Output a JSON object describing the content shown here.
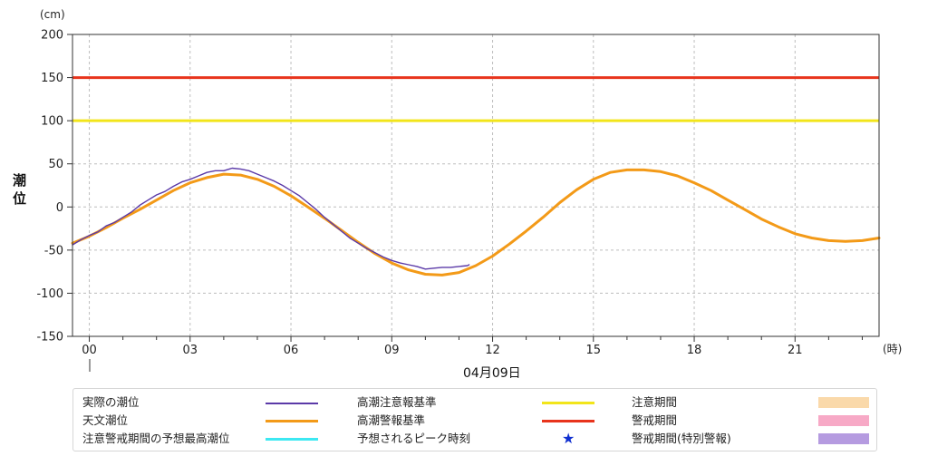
{
  "chart_data": {
    "type": "line",
    "unit_label": "(cm)",
    "ylabel": "潮位",
    "xunit_label": "(時)",
    "date_label": "04月09日",
    "xlim": [
      -0.5,
      23.5
    ],
    "ylim": [
      -150,
      200
    ],
    "yticks": [
      -150,
      -100,
      -50,
      0,
      50,
      100,
      150,
      200
    ],
    "xticks": [
      {
        "x": 0,
        "label": "00"
      },
      {
        "x": 3,
        "label": "03"
      },
      {
        "x": 6,
        "label": "06"
      },
      {
        "x": 9,
        "label": "09"
      },
      {
        "x": 12,
        "label": "12"
      },
      {
        "x": 15,
        "label": "15"
      },
      {
        "x": 18,
        "label": "18"
      },
      {
        "x": 21,
        "label": "21"
      }
    ],
    "grid": true,
    "thresholds": [
      {
        "name": "高潮警報基準",
        "value": 150,
        "color": "#e8341c"
      },
      {
        "name": "高潮注意報基準",
        "value": 100,
        "color": "#f2e51a"
      }
    ],
    "series": [
      {
        "name": "天文潮位",
        "color": "#f39a18",
        "x": [
          -0.5,
          0.0,
          0.5,
          1.0,
          1.5,
          2.0,
          2.5,
          3.0,
          3.5,
          4.0,
          4.5,
          5.0,
          5.5,
          6.0,
          6.5,
          7.0,
          7.5,
          8.0,
          8.5,
          9.0,
          9.5,
          10.0,
          10.5,
          11.0,
          11.5,
          12.0,
          12.5,
          13.0,
          13.5,
          14.0,
          14.5,
          15.0,
          15.5,
          16.0,
          16.5,
          17.0,
          17.5,
          18.0,
          18.5,
          19.0,
          19.5,
          20.0,
          20.5,
          21.0,
          21.5,
          22.0,
          22.5,
          23.0,
          23.5
        ],
        "values": [
          -42,
          -34,
          -24,
          -13,
          -3,
          8,
          19,
          28,
          34,
          38,
          37,
          32,
          24,
          13,
          0,
          -13,
          -27,
          -41,
          -54,
          -65,
          -73,
          -78,
          -79,
          -76,
          -68,
          -57,
          -43,
          -28,
          -12,
          5,
          20,
          32,
          40,
          43,
          43,
          41,
          36,
          28,
          19,
          8,
          -3,
          -14,
          -23,
          -31,
          -36,
          -39,
          -40,
          -39,
          -36
        ]
      },
      {
        "name": "実際の潮位",
        "color": "#5b3aa8",
        "x": [
          -0.5,
          -0.25,
          0.0,
          0.25,
          0.5,
          0.75,
          1.0,
          1.25,
          1.5,
          1.75,
          2.0,
          2.25,
          2.5,
          2.75,
          3.0,
          3.25,
          3.5,
          3.75,
          4.0,
          4.25,
          4.5,
          4.75,
          5.0,
          5.25,
          5.5,
          5.75,
          6.0,
          6.25,
          6.5,
          6.75,
          7.0,
          7.25,
          7.5,
          7.75,
          8.0,
          8.25,
          8.5,
          8.75,
          9.0,
          9.25,
          9.5,
          9.75,
          10.0,
          10.25,
          10.5,
          10.75,
          11.0,
          11.25,
          11.3
        ],
        "values": [
          -44,
          -38,
          -33,
          -29,
          -22,
          -18,
          -12,
          -6,
          2,
          8,
          14,
          18,
          24,
          29,
          32,
          36,
          40,
          42,
          42,
          45,
          44,
          42,
          38,
          34,
          30,
          25,
          19,
          13,
          5,
          -3,
          -12,
          -20,
          -28,
          -36,
          -42,
          -48,
          -53,
          -58,
          -62,
          -65,
          -67,
          -69,
          -72,
          -71,
          -70,
          -70,
          -69,
          -68,
          -67
        ]
      }
    ],
    "legend": [
      {
        "label": "実際の潮位",
        "kind": "line",
        "color": "#5b3aa8"
      },
      {
        "label": "高潮注意報基準",
        "kind": "line",
        "color": "#f2e51a"
      },
      {
        "label": "注意期間",
        "kind": "box",
        "color": "#fad9aa"
      },
      {
        "label": "天文潮位",
        "kind": "line",
        "color": "#f39a18"
      },
      {
        "label": "高潮警報基準",
        "kind": "line",
        "color": "#e8341c"
      },
      {
        "label": "警戒期間",
        "kind": "box",
        "color": "#f7a9c6"
      },
      {
        "label": "注意警戒期間の予想最高潮位",
        "kind": "line",
        "color": "#3de8f2"
      },
      {
        "label": "予想されるピーク時刻",
        "kind": "star",
        "color": "#1030d0",
        "symbol": "★"
      },
      {
        "label": "警戒期間(特別警報)",
        "kind": "box",
        "color": "#b59be0"
      }
    ]
  }
}
